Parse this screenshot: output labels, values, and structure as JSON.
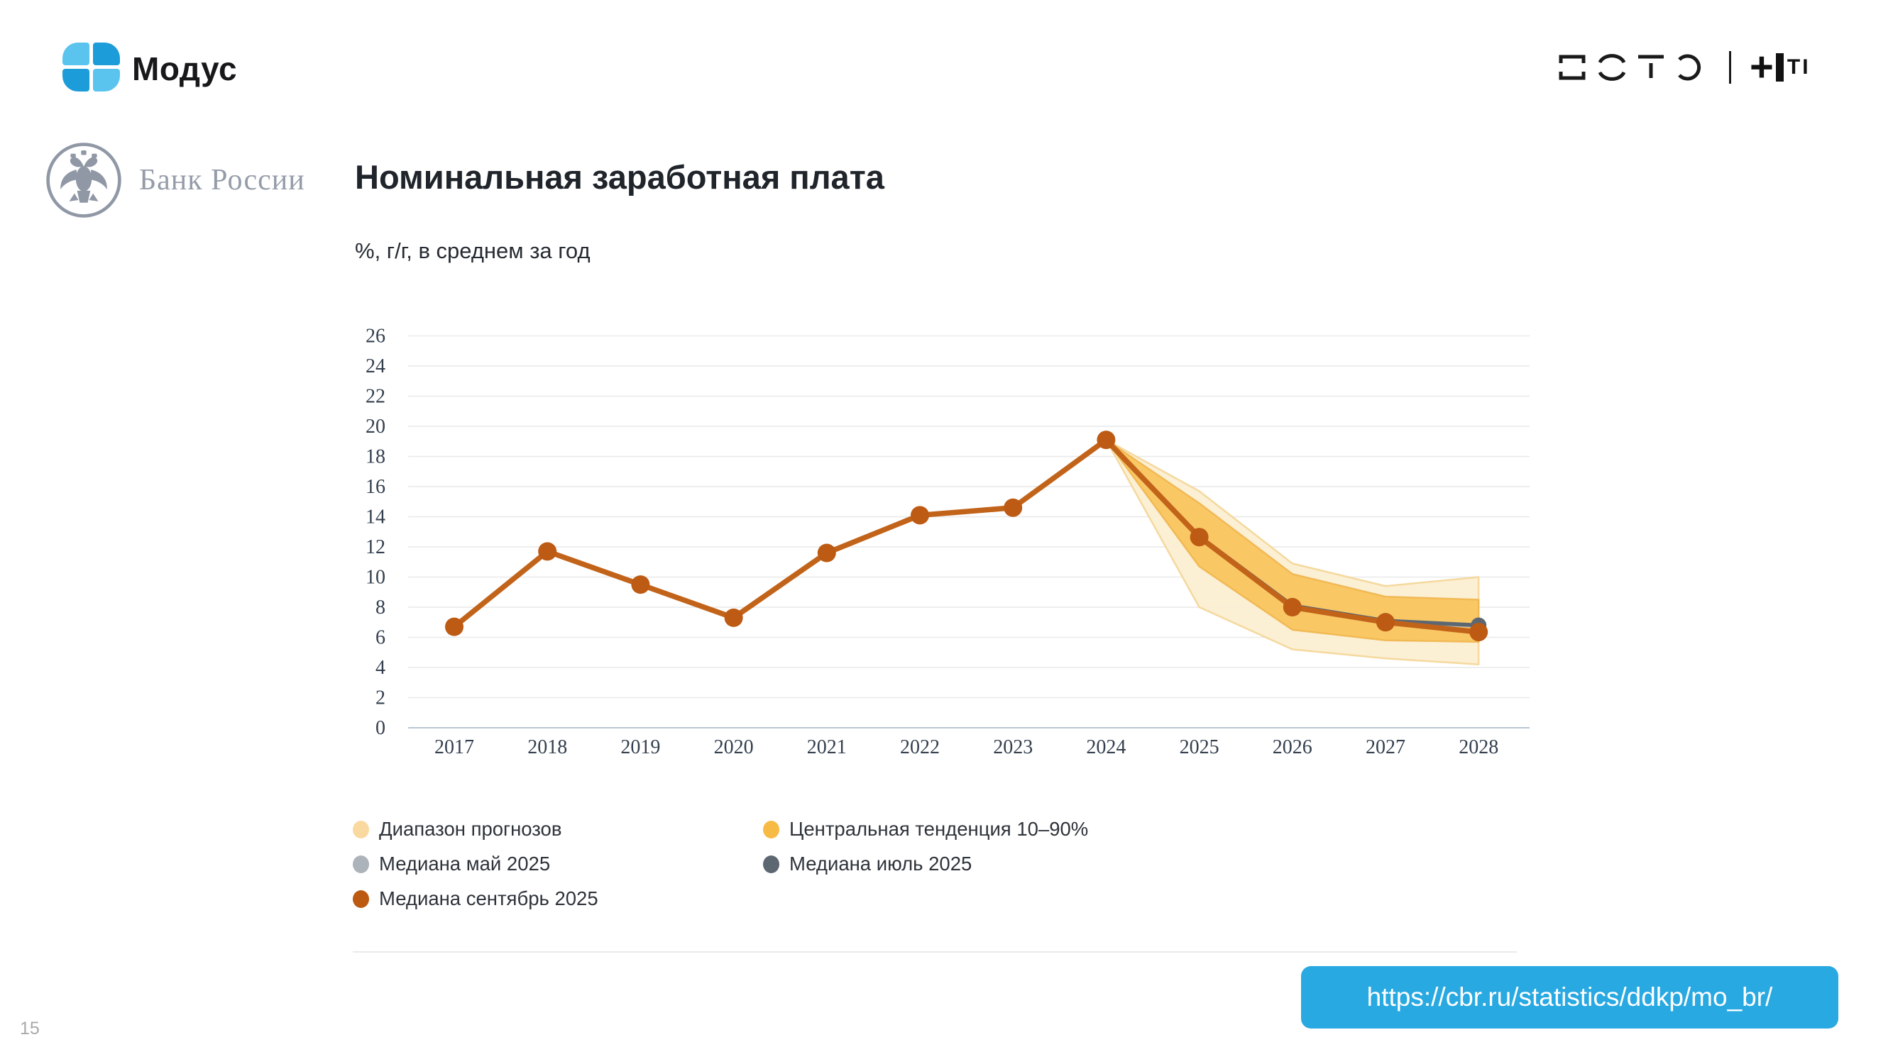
{
  "header": {
    "brand": "Модус",
    "t1_plus": "+",
    "t1_ti": "ТI",
    "bank_name": "Банк России",
    "title": "Номинальная заработная плата",
    "subtitle": "%, г/г, в среднем за год"
  },
  "footer": {
    "url": "https://cbr.ru/statistics/ddkp/mo_br/",
    "page_number": "15"
  },
  "chart_data": {
    "type": "line",
    "title": "Номинальная заработная плата",
    "ylabel": "%, г/г, в среднем за год",
    "x": [
      2017,
      2018,
      2019,
      2020,
      2021,
      2022,
      2023,
      2024,
      2025,
      2026,
      2027,
      2028
    ],
    "ylim": [
      0,
      26
    ],
    "ytick_step": 2,
    "grid": "horizontal",
    "axis_color": "#b9c6d4",
    "grid_color": "#e9e9e9",
    "bands": [
      {
        "name": "Диапазон прогнозов",
        "color": "#fbeed2",
        "edge": "#f3d491",
        "x": [
          2024,
          2025,
          2026,
          2027,
          2028
        ],
        "high": [
          19.1,
          15.7,
          10.9,
          9.4,
          10.0
        ],
        "low": [
          19.1,
          8.0,
          5.2,
          4.6,
          4.2
        ]
      },
      {
        "name": "Центральная тенденция 10–90%",
        "color": "#f9c55f",
        "edge": "#f0b44a",
        "x": [
          2024,
          2025,
          2026,
          2027,
          2028
        ],
        "high": [
          19.1,
          14.9,
          10.2,
          8.7,
          8.5
        ],
        "low": [
          19.1,
          10.7,
          6.5,
          5.8,
          5.7
        ]
      }
    ],
    "series": [
      {
        "name": "Медиана сентябрь 2025",
        "color": "#c2631a",
        "dot_color": "#bd5a13",
        "width": 7.5,
        "dot": 13,
        "x": [
          2017,
          2018,
          2019,
          2020,
          2021,
          2022,
          2023,
          2024,
          2025,
          2026,
          2027,
          2028
        ],
        "values": [
          6.7,
          11.7,
          9.5,
          7.3,
          11.6,
          14.1,
          14.6,
          19.1,
          12.65,
          8.0,
          7.0,
          6.35
        ]
      },
      {
        "name": "Медиана июль 2025",
        "color": "#5d6772",
        "dot_color": "#5d6772",
        "width": 5.5,
        "dot": 11,
        "x": [
          2024,
          2025,
          2026,
          2027,
          2028
        ],
        "values": [
          19.1,
          12.7,
          8.1,
          7.1,
          6.8
        ]
      },
      {
        "name": "Медиана май 2025",
        "color": "#acb3bb",
        "dot_color": "#acb3bb",
        "width": 5,
        "dot": 10,
        "x": [
          2024,
          2025,
          2026,
          2027,
          2028
        ],
        "values": [
          19.1,
          12.65,
          8.05,
          7.05,
          6.75
        ]
      }
    ],
    "legend": [
      {
        "label": "Диапазон прогнозов",
        "color": "#fad9a0"
      },
      {
        "label": "Центральная тенденция 10–90%",
        "color": "#f7bb45"
      },
      {
        "label": "Медиана май 2025",
        "color": "#acb3bb"
      },
      {
        "label": "Медиана июль 2025",
        "color": "#5d6772"
      },
      {
        "label": "Медиана сентябрь 2025",
        "color": "#bc5a12"
      }
    ],
    "legend_position": "bottom-left"
  }
}
